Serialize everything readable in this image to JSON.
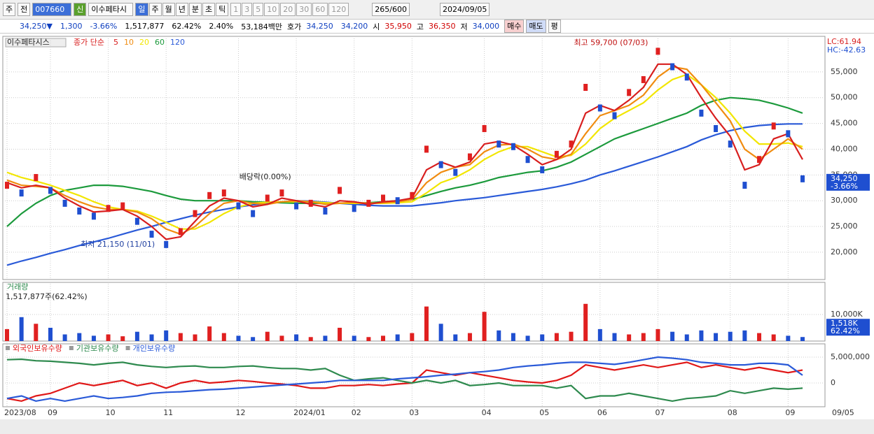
{
  "toolbar": {
    "market": "주",
    "view": "전",
    "code": "007660",
    "name": "이수페타시",
    "flag": "신",
    "periods": [
      "일",
      "주",
      "월",
      "년",
      "분",
      "초",
      "틱"
    ],
    "intervals": [
      "1",
      "3",
      "5",
      "10",
      "20",
      "30",
      "60",
      "120"
    ],
    "count": "265/600",
    "date": "2024/09/05"
  },
  "quote": {
    "price": "34,250▼",
    "change": "1,300",
    "change_pct": "-3.66%",
    "volume": "1,517,877",
    "volume_pct": "62.42%",
    "turnover_pct": "2.40%",
    "amount": "53,184백만",
    "ask_label": "호가",
    "ask": "34,250",
    "bid": "34,200",
    "open_label": "시",
    "open": "35,950",
    "high_label": "고",
    "high": "36,350",
    "low_label": "저",
    "low": "34,000",
    "buy": "매수",
    "sell": "매도",
    "avg": "평"
  },
  "chart_data": [
    {
      "type": "candlestick",
      "title": "이수페타시스",
      "legend_label": "종가 단순",
      "up_color": "#e02020",
      "down_color": "#1f4fd0",
      "close": [
        33000,
        31500,
        34500,
        32000,
        29500,
        28000,
        27000,
        28500,
        29000,
        26000,
        23500,
        21500,
        24000,
        27500,
        31000,
        31500,
        29000,
        27500,
        30500,
        31500,
        29000,
        29500,
        28000,
        32000,
        28500,
        29500,
        30500,
        30000,
        31000,
        40000,
        37000,
        35500,
        38500,
        44000,
        41000,
        40500,
        38000,
        36000,
        39000,
        41000,
        52000,
        48000,
        46500,
        51000,
        53500,
        59000,
        56000,
        54000,
        47000,
        44000,
        41000,
        33000,
        38000,
        44500,
        43000,
        34250
      ],
      "series": [
        {
          "name": "5",
          "color": "#d81e1e",
          "values": [
            33500,
            32500,
            33000,
            32500,
            30500,
            29000,
            27800,
            28000,
            28300,
            27000,
            25000,
            22500,
            23000,
            26000,
            29000,
            30500,
            30000,
            28800,
            29300,
            30500,
            30000,
            29300,
            28800,
            30000,
            29800,
            29300,
            29800,
            30000,
            30500,
            36000,
            37500,
            36500,
            37500,
            41000,
            41500,
            40800,
            39000,
            37000,
            38000,
            40000,
            47000,
            48500,
            47500,
            49500,
            52000,
            56500,
            56500,
            54500,
            50000,
            46000,
            42500,
            36000,
            37000,
            42000,
            43000,
            38000
          ]
        },
        {
          "name": "10",
          "color": "#f08c10",
          "values": [
            34000,
            33000,
            32800,
            32500,
            31000,
            29800,
            28800,
            28300,
            28300,
            27800,
            26500,
            24500,
            23500,
            25000,
            27500,
            29500,
            30000,
            29500,
            29300,
            29800,
            30000,
            29800,
            29300,
            29500,
            29700,
            29500,
            29600,
            29800,
            30200,
            33500,
            35500,
            36500,
            37000,
            39500,
            40800,
            41000,
            40000,
            38500,
            38000,
            39000,
            43000,
            46500,
            47500,
            48500,
            50500,
            54000,
            56000,
            55500,
            52500,
            49000,
            45500,
            40000,
            38000,
            40000,
            42000,
            40000
          ]
        },
        {
          "name": "20",
          "color": "#f2e600",
          "values": [
            35500,
            34500,
            33800,
            33000,
            32000,
            31000,
            29800,
            28800,
            28300,
            28000,
            27000,
            25800,
            24500,
            24500,
            25800,
            27500,
            28800,
            29500,
            29700,
            29800,
            29800,
            29800,
            29600,
            29500,
            29500,
            29500,
            29500,
            29600,
            29800,
            31500,
            33500,
            34500,
            36000,
            38000,
            39500,
            40500,
            40500,
            39500,
            38500,
            38800,
            41000,
            44000,
            46000,
            47500,
            49000,
            51500,
            53500,
            54500,
            52500,
            50000,
            47000,
            43500,
            41000,
            41000,
            41200,
            40500
          ]
        },
        {
          "name": "60",
          "color": "#1c9a3c",
          "values": [
            25000,
            27500,
            29500,
            31000,
            32000,
            32500,
            33000,
            33000,
            32800,
            32300,
            31800,
            31000,
            30300,
            30000,
            30000,
            30000,
            30000,
            29800,
            29700,
            29600,
            29500,
            29500,
            29500,
            29500,
            29500,
            29600,
            29800,
            30000,
            30200,
            31000,
            31800,
            32500,
            33000,
            33700,
            34500,
            35000,
            35500,
            35800,
            36500,
            37500,
            39000,
            40500,
            42000,
            43000,
            44000,
            45000,
            46000,
            47000,
            48500,
            49500,
            50000,
            49800,
            49500,
            48800,
            48000,
            47000
          ]
        },
        {
          "name": "120",
          "color": "#2a5ad8",
          "values": [
            17500,
            18300,
            19000,
            19800,
            20500,
            21300,
            22000,
            22700,
            23500,
            24300,
            25000,
            25800,
            26500,
            27200,
            27800,
            28300,
            28800,
            29200,
            29500,
            29800,
            30000,
            29900,
            29700,
            29500,
            29300,
            29100,
            29000,
            29000,
            29000,
            29300,
            29600,
            30000,
            30300,
            30600,
            31000,
            31400,
            31800,
            32200,
            32700,
            33300,
            34000,
            35000,
            35800,
            36700,
            37600,
            38500,
            39500,
            40500,
            41800,
            42800,
            43600,
            44200,
            44600,
            44800,
            44900,
            44900
          ]
        }
      ],
      "ylim": [
        14700,
        61900
      ],
      "yticks": [
        {
          "value": 20000,
          "label": "20,000"
        },
        {
          "value": 25000,
          "label": "25,000"
        },
        {
          "value": 30000,
          "label": "30,000"
        },
        {
          "value": 35000,
          "label": "35,000"
        },
        {
          "value": 40000,
          "label": "40,000"
        },
        {
          "value": 45000,
          "label": "45,000"
        },
        {
          "value": 50000,
          "label": "50,000"
        },
        {
          "value": 55000,
          "label": "55,000"
        }
      ],
      "annotations": {
        "high": "최고 59,700 (07/03)",
        "low": "최저 21,150 (11/01)",
        "dividend": "배당락(0.00%)"
      },
      "lc": "LC:61.94",
      "hc": "HC:-42.63",
      "last_label": "34,250",
      "last_change": "-3.66%"
    },
    {
      "type": "bar",
      "title": "거래량",
      "subtitle": "1,517,877주(62.42%)",
      "values": [
        4500,
        9000,
        6500,
        5000,
        2500,
        3000,
        2000,
        2500,
        1800,
        3500,
        2500,
        4000,
        3000,
        2500,
        5500,
        3000,
        2000,
        1500,
        3500,
        2000,
        2500,
        1500,
        2000,
        5000,
        2000,
        1500,
        2000,
        2500,
        3000,
        13000,
        6500,
        2500,
        3000,
        11000,
        4000,
        3000,
        2000,
        2500,
        3000,
        3500,
        14000,
        4500,
        3000,
        2500,
        3000,
        4500,
        3500,
        2500,
        4000,
        3000,
        3500,
        4000,
        3000,
        2500,
        2000,
        1518
      ],
      "ylim": [
        0,
        22100
      ],
      "yticks": [
        {
          "value": 10000,
          "label": "10,000K"
        }
      ],
      "last_label": "1,518K",
      "last_change": "62.42%"
    },
    {
      "type": "line",
      "categories": [
        "2023/08",
        null,
        null,
        "09",
        null,
        null,
        null,
        "10",
        null,
        null,
        null,
        "11",
        null,
        null,
        null,
        null,
        "12",
        null,
        null,
        null,
        "2024/01",
        null,
        null,
        null,
        "02",
        null,
        null,
        null,
        "03",
        null,
        null,
        null,
        null,
        "04",
        null,
        null,
        null,
        "05",
        null,
        null,
        null,
        "06",
        null,
        null,
        null,
        "07",
        null,
        null,
        null,
        null,
        "08",
        null,
        null,
        null,
        "09",
        null
      ],
      "series": [
        {
          "name": "외국인보유수량",
          "color": "#e01818",
          "values": [
            -3000000,
            -3500000,
            -2500000,
            -2000000,
            -1000000,
            0,
            -500000,
            0,
            500000,
            -500000,
            0,
            -1000000,
            0,
            500000,
            0,
            200000,
            500000,
            300000,
            0,
            -200000,
            -500000,
            -1000000,
            -1000000,
            -500000,
            -500000,
            -300000,
            -500000,
            -200000,
            0,
            2500000,
            2000000,
            1500000,
            2000000,
            1500000,
            1000000,
            500000,
            200000,
            0,
            500000,
            1500000,
            3500000,
            3000000,
            2500000,
            3000000,
            3500000,
            3000000,
            3500000,
            4000000,
            3000000,
            3500000,
            3000000,
            2500000,
            3000000,
            2500000,
            2000000,
            2500000
          ]
        },
        {
          "name": "기관보유수량",
          "color": "#2e8a4e",
          "values": [
            4500000,
            4600000,
            4300000,
            4200000,
            4000000,
            3800000,
            3500000,
            3800000,
            4000000,
            3500000,
            3200000,
            3000000,
            3200000,
            3300000,
            3000000,
            3000000,
            3200000,
            3300000,
            3000000,
            2800000,
            2800000,
            2500000,
            2800000,
            1500000,
            500000,
            800000,
            1000000,
            500000,
            0,
            500000,
            0,
            500000,
            -500000,
            -300000,
            0,
            -500000,
            -500000,
            -500000,
            -1000000,
            -500000,
            -3000000,
            -2500000,
            -2500000,
            -2000000,
            -2500000,
            -3000000,
            -3500000,
            -3000000,
            -2800000,
            -2500000,
            -1500000,
            -2000000,
            -1500000,
            -1000000,
            -1200000,
            -1000000
          ]
        },
        {
          "name": "개인보유수량",
          "color": "#2a5ad8",
          "values": [
            -3000000,
            -2500000,
            -3500000,
            -3000000,
            -3500000,
            -3000000,
            -2500000,
            -3000000,
            -2800000,
            -2500000,
            -2000000,
            -1800000,
            -1700000,
            -1500000,
            -1300000,
            -1200000,
            -1000000,
            -800000,
            -600000,
            -400000,
            -200000,
            0,
            200000,
            500000,
            500000,
            500000,
            500000,
            800000,
            1000000,
            1200000,
            1500000,
            1700000,
            2000000,
            2200000,
            2500000,
            3000000,
            3300000,
            3500000,
            3800000,
            4000000,
            4000000,
            3800000,
            3600000,
            4000000,
            4500000,
            5000000,
            4800000,
            4500000,
            4000000,
            3800000,
            3500000,
            3500000,
            3800000,
            3800000,
            3500000,
            1500000
          ]
        }
      ],
      "ylim": [
        -4600000,
        7570000
      ],
      "yticks": [
        {
          "value": 5000000,
          "label": "5,000,000"
        },
        0
      ],
      "x_end_label": "09/05"
    }
  ]
}
